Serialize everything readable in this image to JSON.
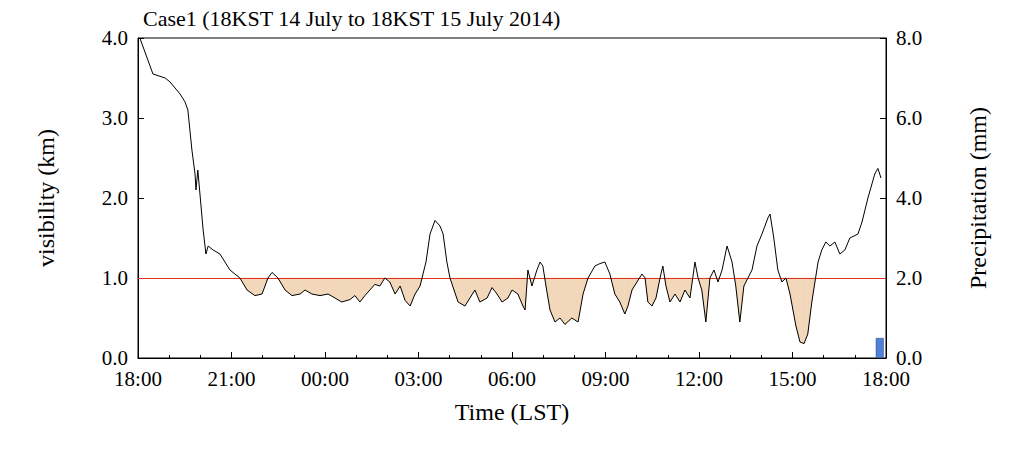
{
  "chart_data": {
    "type": "line",
    "title": "Case1 (18KST 14 July to 18KST 15 July 2014)",
    "x_label": "Time (LST)",
    "y_label": "visibility (km)",
    "y2_label": "Precipitation (mm)",
    "grid": false,
    "xlim": [
      0,
      24
    ],
    "xticks": [
      {
        "value": 0,
        "label": "18:00"
      },
      {
        "value": 3,
        "label": "21:00"
      },
      {
        "value": 6,
        "label": "00:00"
      },
      {
        "value": 9,
        "label": "03:00"
      },
      {
        "value": 12,
        "label": "06:00"
      },
      {
        "value": 15,
        "label": "09:00"
      },
      {
        "value": 18,
        "label": "12:00"
      },
      {
        "value": 21,
        "label": "15:00"
      },
      {
        "value": 24,
        "label": "18:00"
      }
    ],
    "ylim": [
      0,
      4
    ],
    "yticks": [
      {
        "value": 0,
        "label": "0.0"
      },
      {
        "value": 1,
        "label": "1.0"
      },
      {
        "value": 2,
        "label": "2.0"
      },
      {
        "value": 3,
        "label": "3.0"
      },
      {
        "value": 4,
        "label": "4.0"
      }
    ],
    "y2lim": [
      0,
      8
    ],
    "y2ticks": [
      {
        "value": 0,
        "label": "0.0"
      },
      {
        "value": 2,
        "label": "2.0"
      },
      {
        "value": 4,
        "label": "4.0"
      },
      {
        "value": 6,
        "label": "6.0"
      },
      {
        "value": 8,
        "label": "8.0"
      }
    ],
    "reference_line": {
      "value": 1.0,
      "color": "#e0301e"
    },
    "x": [
      0.06,
      0.48,
      0.87,
      1.03,
      1.35,
      1.51,
      1.6,
      1.73,
      1.83,
      1.86,
      1.92,
      2.09,
      2.18,
      2.25,
      2.41,
      2.63,
      2.79,
      2.95,
      3.11,
      3.27,
      3.5,
      3.75,
      3.98,
      4.17,
      4.3,
      4.49,
      4.72,
      4.94,
      5.2,
      5.36,
      5.58,
      5.84,
      6.1,
      6.32,
      6.54,
      6.8,
      6.96,
      7.12,
      7.28,
      7.44,
      7.6,
      7.76,
      7.92,
      8.08,
      8.25,
      8.41,
      8.57,
      8.73,
      8.89,
      9.05,
      9.24,
      9.37,
      9.53,
      9.69,
      9.79,
      9.91,
      10.01,
      10.14,
      10.27,
      10.49,
      10.65,
      10.81,
      10.97,
      11.2,
      11.36,
      11.52,
      11.68,
      11.87,
      12.0,
      12.19,
      12.35,
      12.42,
      12.51,
      12.64,
      12.8,
      12.9,
      12.99,
      13.09,
      13.22,
      13.38,
      13.54,
      13.7,
      13.92,
      14.12,
      14.28,
      14.44,
      14.66,
      14.82,
      14.98,
      15.14,
      15.3,
      15.46,
      15.62,
      15.72,
      15.85,
      16.01,
      16.17,
      16.27,
      16.36,
      16.49,
      16.62,
      16.75,
      16.84,
      16.94,
      17.07,
      17.23,
      17.39,
      17.55,
      17.71,
      17.87,
      17.97,
      18.09,
      18.22,
      18.35,
      18.48,
      18.61,
      18.74,
      18.9,
      19.06,
      19.18,
      19.31,
      19.44,
      19.57,
      19.7,
      19.86,
      20.02,
      20.21,
      20.28,
      20.4,
      20.53,
      20.66,
      20.79,
      20.92,
      21.11,
      21.24,
      21.37,
      21.49,
      21.62,
      21.82,
      21.94,
      22.07,
      22.2,
      22.36,
      22.52,
      22.68,
      22.84,
      23.1,
      23.23,
      23.42,
      23.64,
      23.74,
      23.84
    ],
    "series": [
      {
        "type": "line",
        "color": "#000000",
        "values": [
          4.0,
          3.55,
          3.5,
          3.45,
          3.3,
          3.2,
          3.1,
          2.6,
          2.3,
          2.1,
          2.35,
          1.6,
          1.3,
          1.4,
          1.35,
          1.3,
          1.2,
          1.1,
          1.05,
          1.0,
          0.85,
          0.78,
          0.8,
          1.0,
          1.07,
          1.0,
          0.85,
          0.78,
          0.8,
          0.85,
          0.8,
          0.78,
          0.8,
          0.75,
          0.7,
          0.73,
          0.78,
          0.7,
          0.78,
          0.85,
          0.92,
          0.9,
          1.0,
          0.95,
          0.8,
          0.9,
          0.72,
          0.65,
          0.8,
          0.9,
          1.2,
          1.55,
          1.72,
          1.65,
          1.55,
          1.2,
          1.0,
          0.85,
          0.7,
          0.65,
          0.75,
          0.85,
          0.7,
          0.75,
          0.88,
          0.8,
          0.7,
          0.75,
          0.85,
          0.8,
          0.65,
          0.6,
          1.1,
          0.9,
          1.1,
          1.2,
          1.15,
          0.9,
          0.6,
          0.45,
          0.5,
          0.42,
          0.5,
          0.45,
          0.8,
          1.0,
          1.15,
          1.18,
          1.2,
          1.05,
          0.8,
          0.7,
          0.55,
          0.65,
          0.85,
          0.95,
          1.05,
          1.0,
          0.7,
          0.65,
          0.75,
          1.0,
          1.15,
          0.9,
          0.7,
          0.8,
          0.7,
          0.85,
          0.75,
          1.2,
          1.0,
          0.85,
          0.45,
          1.0,
          1.1,
          0.95,
          1.1,
          1.4,
          1.2,
          0.9,
          0.45,
          0.9,
          1.0,
          1.1,
          1.4,
          1.55,
          1.75,
          1.8,
          1.5,
          1.1,
          0.95,
          1.0,
          0.8,
          0.4,
          0.2,
          0.18,
          0.3,
          0.7,
          1.2,
          1.35,
          1.45,
          1.4,
          1.45,
          1.3,
          1.35,
          1.5,
          1.55,
          1.7,
          2.0,
          2.3,
          2.37,
          2.25
        ]
      },
      {
        "type": "bar",
        "axis": "y2",
        "color": "#4f81d9",
        "x": [
          23.8
        ],
        "values": [
          0.5
        ]
      }
    ]
  }
}
